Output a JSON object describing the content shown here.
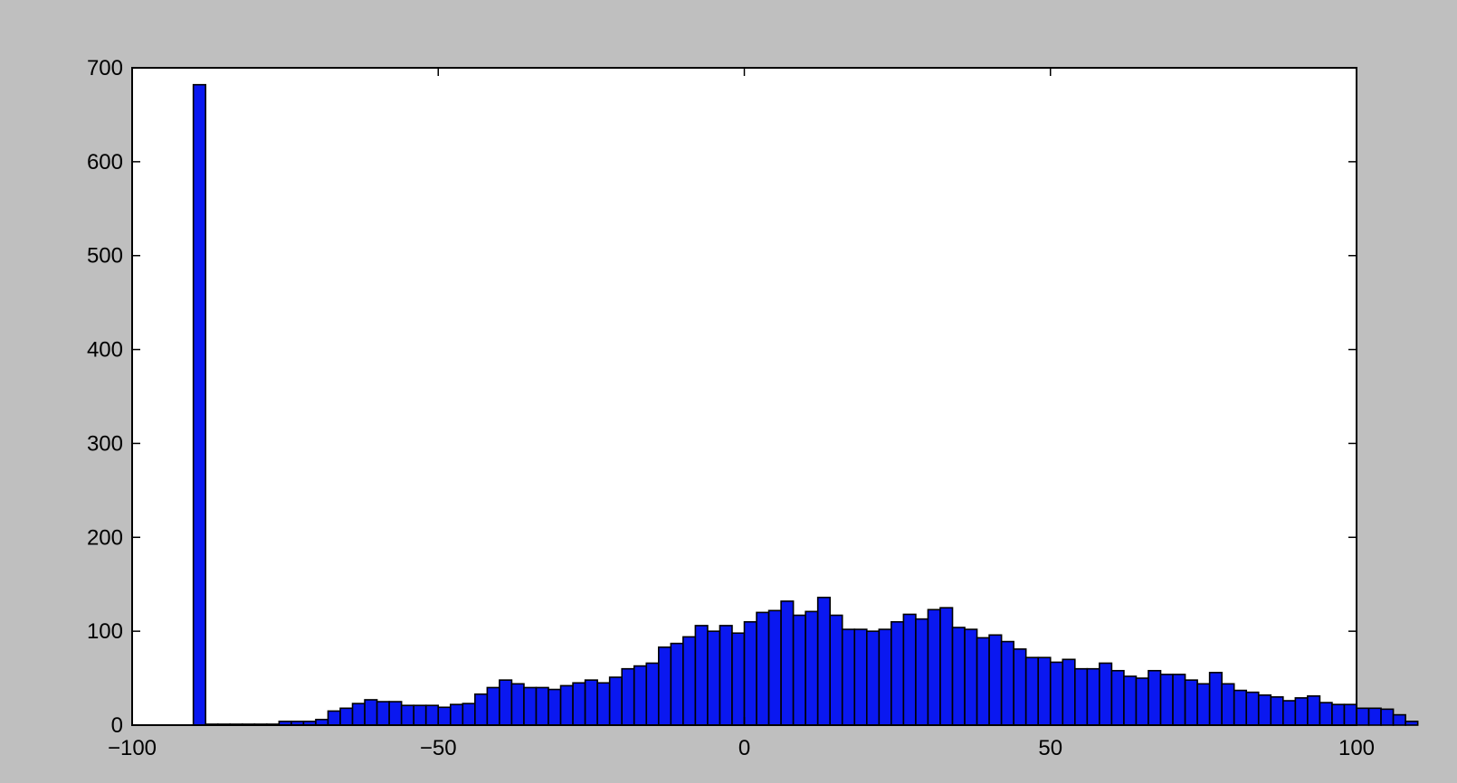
{
  "colors": {
    "figure_background": "#bfbfbf",
    "axes_background": "#ffffff",
    "bar_fill": "#0a18f0",
    "bar_edge": "#000000"
  },
  "chart_data": {
    "type": "bar",
    "subtype": "histogram",
    "title": "",
    "xlabel": "",
    "ylabel": "",
    "xlim": [
      -100,
      100
    ],
    "ylim": [
      0,
      700
    ],
    "grid": false,
    "legend": null,
    "x_ticks": [
      -100,
      -50,
      0,
      50,
      100
    ],
    "x_tick_labels": [
      "−100",
      "−50",
      "0",
      "50",
      "100"
    ],
    "y_ticks": [
      0,
      100,
      200,
      300,
      400,
      500,
      600,
      700
    ],
    "y_tick_labels": [
      "0",
      "100",
      "200",
      "300",
      "400",
      "500",
      "600",
      "700"
    ],
    "bin_start": -90,
    "bin_width": 2,
    "values": [
      682,
      1,
      1,
      1,
      1,
      1,
      1,
      4,
      4,
      4,
      6,
      15,
      18,
      23,
      27,
      25,
      25,
      21,
      21,
      21,
      19,
      22,
      23,
      33,
      40,
      48,
      44,
      40,
      40,
      38,
      42,
      45,
      48,
      45,
      51,
      60,
      63,
      66,
      83,
      87,
      94,
      106,
      100,
      106,
      98,
      110,
      120,
      122,
      132,
      117,
      121,
      136,
      117,
      102,
      102,
      100,
      102,
      110,
      118,
      113,
      123,
      125,
      104,
      102,
      93,
      96,
      89,
      81,
      72,
      72,
      67,
      70,
      60,
      60,
      66,
      58,
      52,
      50,
      58,
      54,
      54,
      48,
      44,
      56,
      44,
      37,
      35,
      32,
      30,
      26,
      29,
      31,
      24,
      22,
      22,
      18,
      18,
      17,
      11,
      4
    ]
  }
}
